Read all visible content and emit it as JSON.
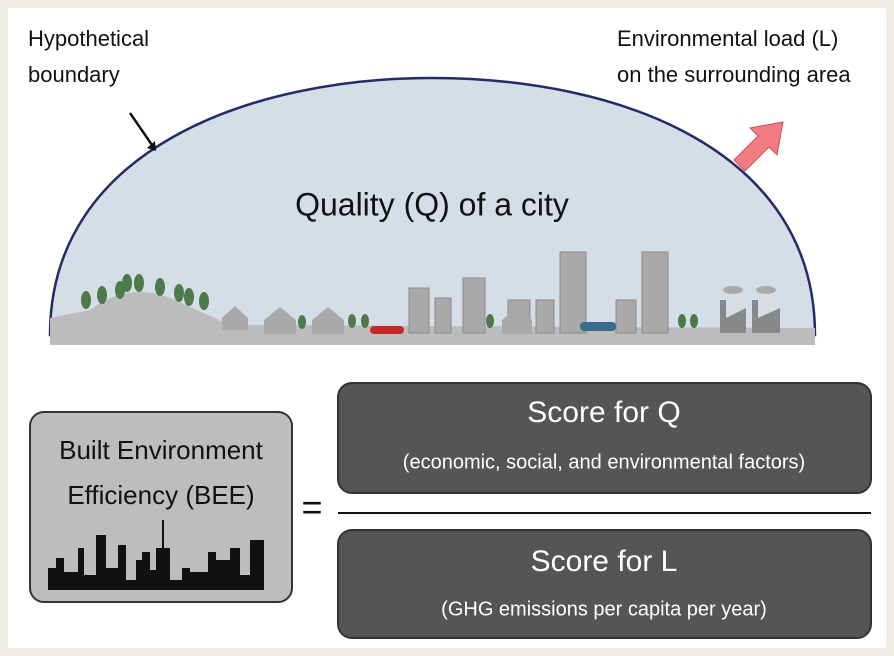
{
  "labels": {
    "boundary": [
      "Hypothetical",
      "boundary"
    ],
    "load": [
      "Environmental load (L)",
      "on the surrounding area"
    ],
    "quality": "Quality (Q) of a city"
  },
  "formula": {
    "lhs": [
      "Built  Environment",
      "Efficiency (BEE)"
    ],
    "equals": "=",
    "numerator": {
      "title": "Score for Q",
      "subtitle": "(economic, social, and environmental factors)"
    },
    "denominator": {
      "title": "Score for L",
      "subtitle": "(GHG emissions per capita per year)"
    }
  }
}
